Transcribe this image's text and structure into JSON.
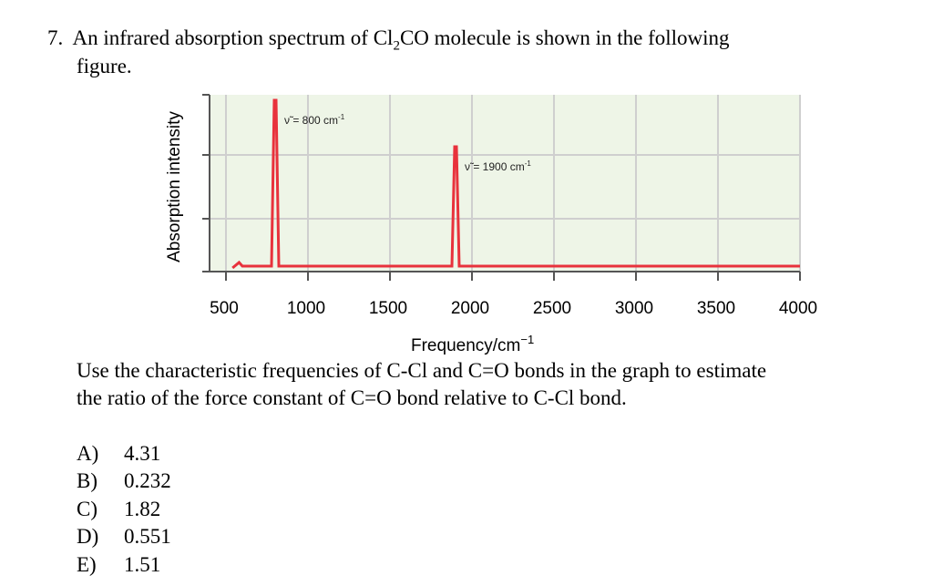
{
  "question": {
    "number": "7.",
    "line1": "An infrared absorption spectrum of Cl",
    "sub2": "2",
    "line1_end": "CO molecule is shown in the following",
    "line2": "figure.",
    "prompt_line1": "Use the characteristic frequencies of C-Cl and C=O bonds in the graph to estimate",
    "prompt_line2": "the ratio of the force constant of C=O bond relative to C-Cl bond."
  },
  "chart_data": {
    "type": "line",
    "ylabel": "Absorption intensity",
    "xlabel": "Frequency/cm",
    "xlabel_exp": "−1",
    "xlim": [
      400,
      4000
    ],
    "xticks": [
      "500",
      "1000",
      "1500",
      "2000",
      "2500",
      "3000",
      "3500",
      "4000"
    ],
    "xtick_values": [
      500,
      1000,
      1500,
      2000,
      2500,
      3000,
      3500,
      4000
    ],
    "grid": true,
    "background_color": "#eef5e7",
    "line_color": "#e8323c",
    "peaks": [
      {
        "x": 800,
        "relative_height": 1.0,
        "label": "ν̃ = 800 cm",
        "label_exp": "-1"
      },
      {
        "x": 1900,
        "relative_height": 0.72,
        "label": "ν̃ = 1900 cm",
        "label_exp": "-1"
      }
    ]
  },
  "options": [
    {
      "letter": "A)",
      "value": "4.31"
    },
    {
      "letter": "B)",
      "value": "0.232"
    },
    {
      "letter": "C)",
      "value": "1.82"
    },
    {
      "letter": "D)",
      "value": "0.551"
    },
    {
      "letter": "E)",
      "value": "1.51"
    }
  ]
}
